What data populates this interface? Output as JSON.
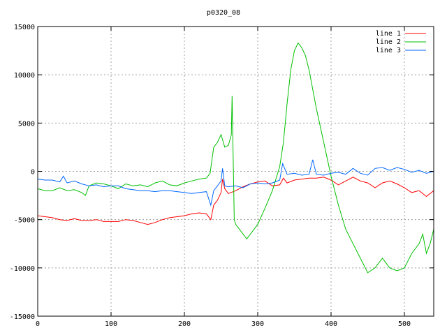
{
  "chart_data": {
    "type": "line",
    "title": "p0320_08",
    "xlabel": "",
    "ylabel": "",
    "xlim": [
      0,
      540
    ],
    "ylim": [
      -15000,
      15000
    ],
    "x_ticks": [
      0,
      100,
      200,
      300,
      400,
      500
    ],
    "y_ticks": [
      -15000,
      -10000,
      -5000,
      0,
      5000,
      10000,
      15000
    ],
    "grid": true,
    "legend_position": "top-right",
    "series": [
      {
        "name": "line 1",
        "color": "#ff0000",
        "points": [
          [
            0,
            -4600
          ],
          [
            10,
            -4700
          ],
          [
            20,
            -4800
          ],
          [
            30,
            -5000
          ],
          [
            40,
            -5100
          ],
          [
            50,
            -4900
          ],
          [
            60,
            -5100
          ],
          [
            70,
            -5100
          ],
          [
            80,
            -5000
          ],
          [
            90,
            -5200
          ],
          [
            100,
            -5200
          ],
          [
            110,
            -5200
          ],
          [
            120,
            -5000
          ],
          [
            130,
            -5100
          ],
          [
            140,
            -5300
          ],
          [
            150,
            -5500
          ],
          [
            160,
            -5300
          ],
          [
            170,
            -5000
          ],
          [
            180,
            -4800
          ],
          [
            190,
            -4700
          ],
          [
            200,
            -4600
          ],
          [
            210,
            -4400
          ],
          [
            220,
            -4300
          ],
          [
            230,
            -4400
          ],
          [
            236,
            -5000
          ],
          [
            240,
            -3500
          ],
          [
            245,
            -3000
          ],
          [
            250,
            -2200
          ],
          [
            252,
            -800
          ],
          [
            255,
            -1800
          ],
          [
            260,
            -2300
          ],
          [
            270,
            -2000
          ],
          [
            280,
            -1600
          ],
          [
            290,
            -1300
          ],
          [
            300,
            -1100
          ],
          [
            310,
            -1000
          ],
          [
            320,
            -1500
          ],
          [
            330,
            -1400
          ],
          [
            335,
            -700
          ],
          [
            340,
            -1200
          ],
          [
            350,
            -900
          ],
          [
            360,
            -800
          ],
          [
            370,
            -700
          ],
          [
            380,
            -700
          ],
          [
            390,
            -600
          ],
          [
            400,
            -900
          ],
          [
            410,
            -1400
          ],
          [
            420,
            -1000
          ],
          [
            430,
            -600
          ],
          [
            440,
            -1000
          ],
          [
            450,
            -1200
          ],
          [
            460,
            -1700
          ],
          [
            470,
            -1200
          ],
          [
            480,
            -1000
          ],
          [
            490,
            -1300
          ],
          [
            500,
            -1700
          ],
          [
            510,
            -2200
          ],
          [
            520,
            -2000
          ],
          [
            530,
            -2600
          ],
          [
            540,
            -2000
          ]
        ]
      },
      {
        "name": "line 2",
        "color": "#00c000",
        "points": [
          [
            0,
            -1800
          ],
          [
            10,
            -2000
          ],
          [
            20,
            -2000
          ],
          [
            30,
            -1700
          ],
          [
            40,
            -2000
          ],
          [
            50,
            -1900
          ],
          [
            60,
            -2200
          ],
          [
            65,
            -2500
          ],
          [
            70,
            -1500
          ],
          [
            80,
            -1200
          ],
          [
            90,
            -1300
          ],
          [
            100,
            -1500
          ],
          [
            110,
            -1800
          ],
          [
            120,
            -1300
          ],
          [
            130,
            -1500
          ],
          [
            140,
            -1400
          ],
          [
            150,
            -1600
          ],
          [
            160,
            -1200
          ],
          [
            170,
            -1000
          ],
          [
            180,
            -1400
          ],
          [
            190,
            -1500
          ],
          [
            200,
            -1200
          ],
          [
            210,
            -1000
          ],
          [
            220,
            -800
          ],
          [
            230,
            -700
          ],
          [
            235,
            -200
          ],
          [
            240,
            2500
          ],
          [
            245,
            3000
          ],
          [
            250,
            3800
          ],
          [
            255,
            2500
          ],
          [
            260,
            2700
          ],
          [
            264,
            3800
          ],
          [
            265,
            7800
          ],
          [
            268,
            -5000
          ],
          [
            270,
            -5500
          ],
          [
            280,
            -6500
          ],
          [
            285,
            -7000
          ],
          [
            290,
            -6500
          ],
          [
            300,
            -5500
          ],
          [
            310,
            -3800
          ],
          [
            320,
            -2000
          ],
          [
            330,
            500
          ],
          [
            335,
            3000
          ],
          [
            340,
            7000
          ],
          [
            345,
            10500
          ],
          [
            350,
            12500
          ],
          [
            355,
            13300
          ],
          [
            360,
            12800
          ],
          [
            365,
            12000
          ],
          [
            370,
            10500
          ],
          [
            380,
            6500
          ],
          [
            390,
            3000
          ],
          [
            400,
            -500
          ],
          [
            410,
            -3500
          ],
          [
            420,
            -6000
          ],
          [
            430,
            -7500
          ],
          [
            440,
            -9000
          ],
          [
            450,
            -10500
          ],
          [
            460,
            -10000
          ],
          [
            470,
            -9000
          ],
          [
            480,
            -10000
          ],
          [
            490,
            -10300
          ],
          [
            500,
            -10000
          ],
          [
            510,
            -8500
          ],
          [
            520,
            -7500
          ],
          [
            525,
            -6500
          ],
          [
            530,
            -8500
          ],
          [
            535,
            -7500
          ],
          [
            540,
            -6000
          ]
        ]
      },
      {
        "name": "line 3",
        "color": "#0066ff",
        "points": [
          [
            0,
            -800
          ],
          [
            10,
            -900
          ],
          [
            20,
            -900
          ],
          [
            30,
            -1100
          ],
          [
            35,
            -500
          ],
          [
            40,
            -1200
          ],
          [
            50,
            -1000
          ],
          [
            60,
            -1300
          ],
          [
            70,
            -1500
          ],
          [
            80,
            -1400
          ],
          [
            90,
            -1600
          ],
          [
            100,
            -1500
          ],
          [
            110,
            -1500
          ],
          [
            120,
            -1800
          ],
          [
            130,
            -1900
          ],
          [
            140,
            -2000
          ],
          [
            150,
            -2000
          ],
          [
            160,
            -2100
          ],
          [
            170,
            -2000
          ],
          [
            180,
            -2000
          ],
          [
            190,
            -2100
          ],
          [
            200,
            -2200
          ],
          [
            210,
            -2300
          ],
          [
            220,
            -2200
          ],
          [
            230,
            -2100
          ],
          [
            236,
            -3500
          ],
          [
            240,
            -2000
          ],
          [
            245,
            -1500
          ],
          [
            250,
            -1000
          ],
          [
            252,
            300
          ],
          [
            255,
            -1500
          ],
          [
            260,
            -1600
          ],
          [
            270,
            -1500
          ],
          [
            280,
            -1700
          ],
          [
            290,
            -1300
          ],
          [
            300,
            -1200
          ],
          [
            310,
            -1300
          ],
          [
            320,
            -1200
          ],
          [
            330,
            -900
          ],
          [
            334,
            800
          ],
          [
            340,
            -300
          ],
          [
            350,
            -200
          ],
          [
            360,
            -400
          ],
          [
            370,
            -300
          ],
          [
            375,
            1200
          ],
          [
            380,
            -300
          ],
          [
            390,
            -400
          ],
          [
            400,
            -200
          ],
          [
            410,
            -100
          ],
          [
            420,
            -300
          ],
          [
            430,
            300
          ],
          [
            440,
            -200
          ],
          [
            450,
            -400
          ],
          [
            460,
            300
          ],
          [
            470,
            400
          ],
          [
            480,
            100
          ],
          [
            490,
            400
          ],
          [
            500,
            200
          ],
          [
            510,
            -100
          ],
          [
            520,
            100
          ],
          [
            530,
            -200
          ],
          [
            540,
            0
          ]
        ]
      }
    ]
  }
}
